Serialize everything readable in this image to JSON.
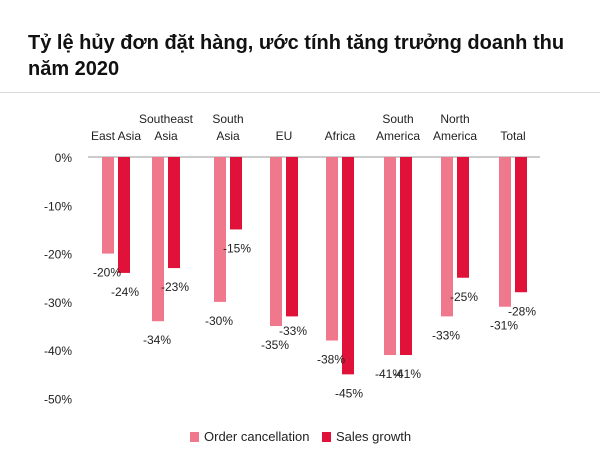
{
  "chart_data": {
    "type": "bar",
    "title": "Tỷ lệ hủy đơn đặt hàng, ước tính tăng trưởng doanh thu năm 2020",
    "categories": [
      [
        "East Asia"
      ],
      [
        "Southeast",
        "Asia"
      ],
      [
        "South",
        "Asia"
      ],
      [
        "EU"
      ],
      [
        "Africa"
      ],
      [
        "South",
        "America"
      ],
      [
        "North",
        "America"
      ],
      [
        "Total"
      ]
    ],
    "series": [
      {
        "name": "Order cancellation",
        "color": "#f0788c",
        "values": [
          -20,
          -34,
          -30,
          -35,
          -38,
          -41,
          -33,
          -31
        ],
        "labels": [
          "-20%",
          "-34%",
          "-30%",
          "-35%",
          "-38%",
          "-41%",
          "-33%",
          "-31%"
        ]
      },
      {
        "name": "Sales growth",
        "color": "#e0123a",
        "values": [
          -24,
          -23,
          -15,
          -33,
          -45,
          -41,
          -25,
          -28
        ],
        "labels": [
          "-24%",
          "-23%",
          "-15%",
          "-33%",
          "-45%",
          "-41%",
          "-25%",
          "-28%"
        ]
      }
    ],
    "yticks": [
      0,
      -10,
      -20,
      -30,
      -40,
      -50
    ],
    "ytick_labels": [
      "0%",
      "-10%",
      "-20%",
      "-30%",
      "-40%",
      "-50%"
    ],
    "ylim": [
      -50,
      0
    ],
    "legend": "bottom-center",
    "xlabel": "",
    "ylabel": ""
  }
}
